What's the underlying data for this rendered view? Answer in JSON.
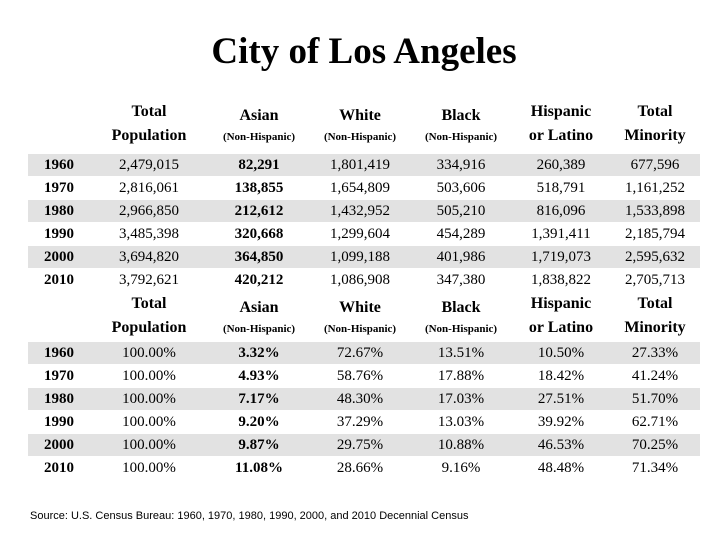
{
  "title": "City of Los Angeles",
  "headers": {
    "total_population": [
      "Total",
      "Population"
    ],
    "asian": [
      "Asian",
      "(Non-Hispanic)"
    ],
    "white": [
      "White",
      "(Non-Hispanic)"
    ],
    "black": [
      "Black",
      "(Non-Hispanic)"
    ],
    "hispanic": [
      "Hispanic",
      "or Latino"
    ],
    "total_minority": [
      "Total",
      "Minority"
    ]
  },
  "counts": [
    {
      "year": "1960",
      "total": "2,479,015",
      "asian": "82,291",
      "white": "1,801,419",
      "black": "334,916",
      "hispanic": "260,389",
      "minority": "677,596"
    },
    {
      "year": "1970",
      "total": "2,816,061",
      "asian": "138,855",
      "white": "1,654,809",
      "black": "503,606",
      "hispanic": "518,791",
      "minority": "1,161,252"
    },
    {
      "year": "1980",
      "total": "2,966,850",
      "asian": "212,612",
      "white": "1,432,952",
      "black": "505,210",
      "hispanic": "816,096",
      "minority": "1,533,898"
    },
    {
      "year": "1990",
      "total": "3,485,398",
      "asian": "320,668",
      "white": "1,299,604",
      "black": "454,289",
      "hispanic": "1,391,411",
      "minority": "2,185,794"
    },
    {
      "year": "2000",
      "total": "3,694,820",
      "asian": "364,850",
      "white": "1,099,188",
      "black": "401,986",
      "hispanic": "1,719,073",
      "minority": "2,595,632"
    },
    {
      "year": "2010",
      "total": "3,792,621",
      "asian": "420,212",
      "white": "1,086,908",
      "black": "347,380",
      "hispanic": "1,838,822",
      "minority": "2,705,713"
    }
  ],
  "percents": [
    {
      "year": "1960",
      "total": "100.00%",
      "asian": "3.32%",
      "white": "72.67%",
      "black": "13.51%",
      "hispanic": "10.50%",
      "minority": "27.33%"
    },
    {
      "year": "1970",
      "total": "100.00%",
      "asian": "4.93%",
      "white": "58.76%",
      "black": "17.88%",
      "hispanic": "18.42%",
      "minority": "41.24%"
    },
    {
      "year": "1980",
      "total": "100.00%",
      "asian": "7.17%",
      "white": "48.30%",
      "black": "17.03%",
      "hispanic": "27.51%",
      "minority": "51.70%"
    },
    {
      "year": "1990",
      "total": "100.00%",
      "asian": "9.20%",
      "white": "37.29%",
      "black": "13.03%",
      "hispanic": "39.92%",
      "minority": "62.71%"
    },
    {
      "year": "2000",
      "total": "100.00%",
      "asian": "9.87%",
      "white": "29.75%",
      "black": "10.88%",
      "hispanic": "46.53%",
      "minority": "70.25%"
    },
    {
      "year": "2010",
      "total": "100.00%",
      "asian": "11.08%",
      "white": "28.66%",
      "black": "9.16%",
      "hispanic": "48.48%",
      "minority": "71.34%"
    }
  ],
  "source": "Source: U.S. Census Bureau: 1960, 1970, 1980, 1990, 2000, and 2010 Decennial Census",
  "colors": {
    "row_shade": "#e2e2e2",
    "text": "#000000",
    "background": "#ffffff"
  }
}
